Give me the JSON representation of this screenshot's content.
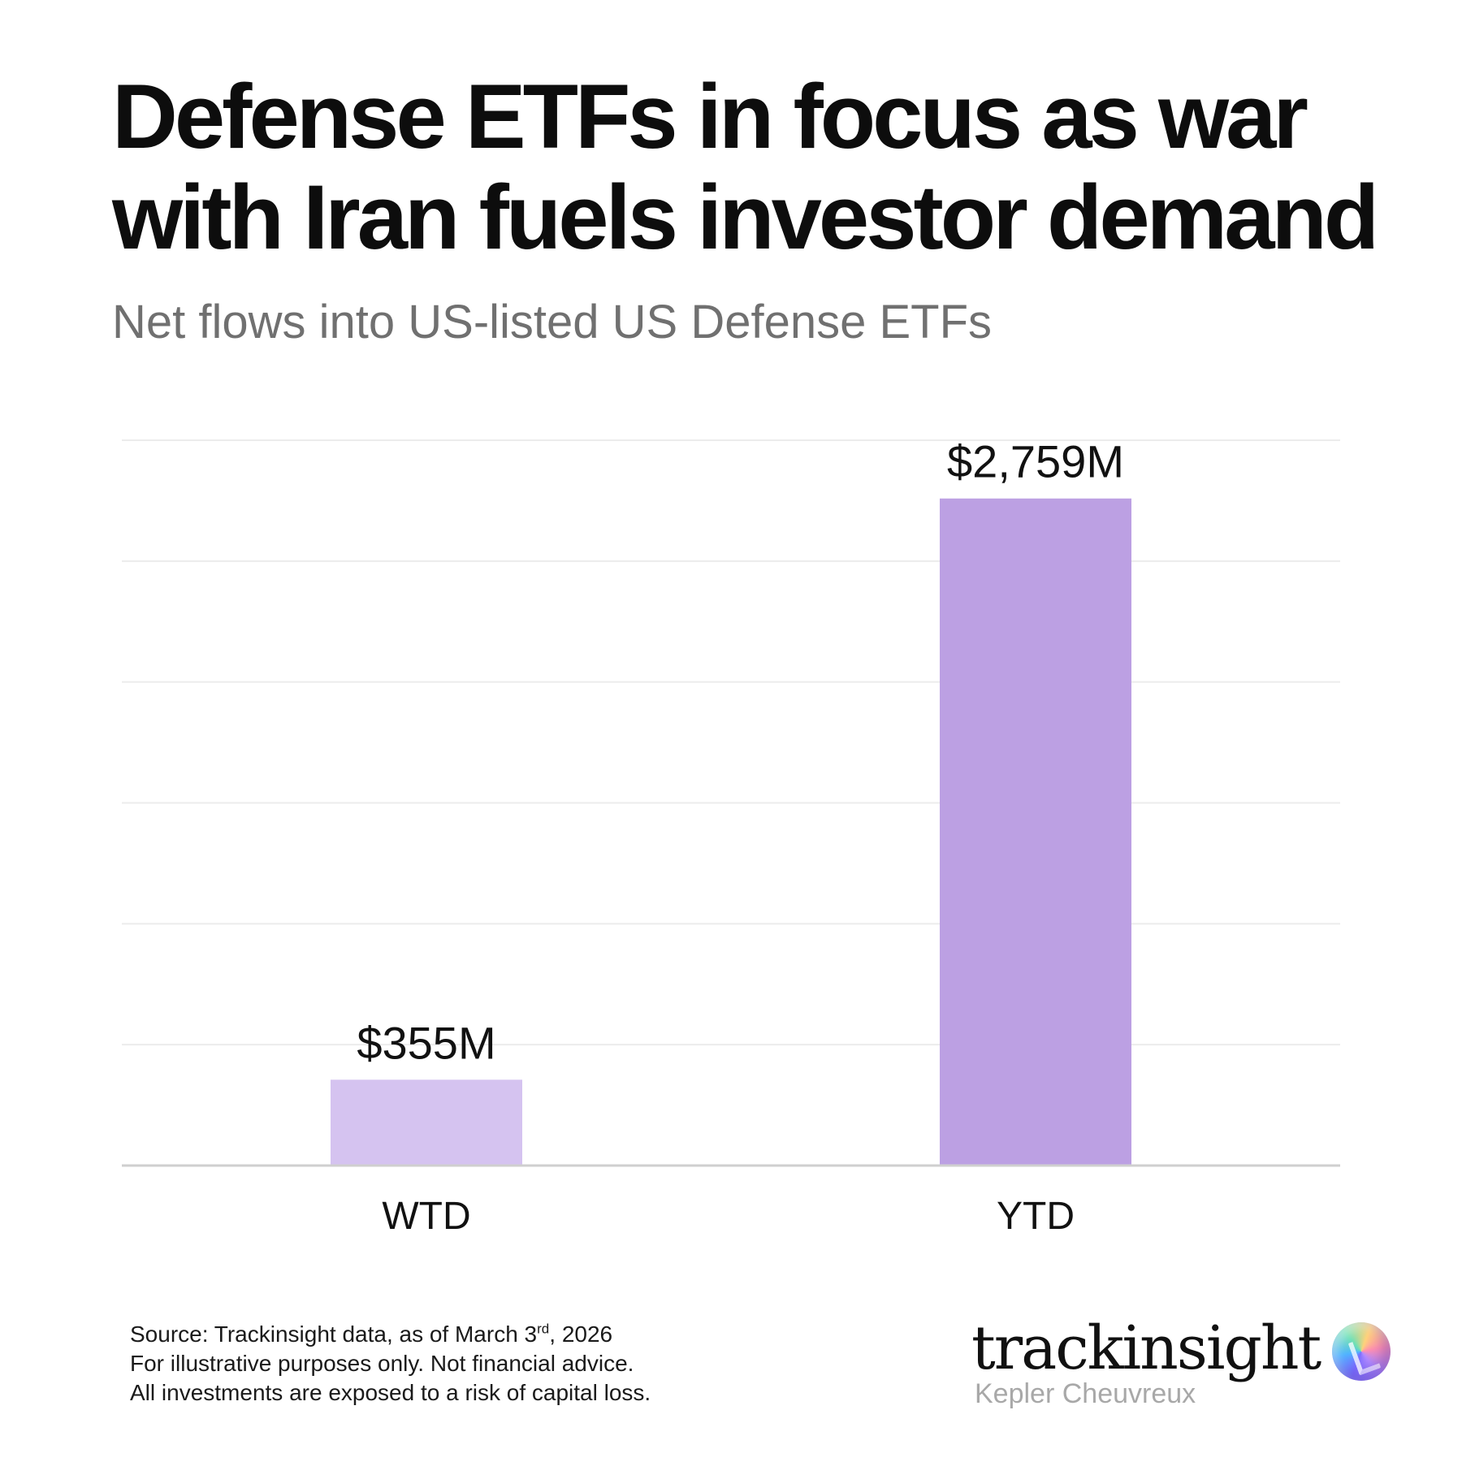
{
  "header": {
    "title_line1": "Defense ETFs in focus as war",
    "title_line2": "with Iran fuels investor demand",
    "subtitle": "Net flows into US-listed US Defense ETFs"
  },
  "chart_data": {
    "type": "bar",
    "categories": [
      "WTD",
      "YTD"
    ],
    "values": [
      355,
      2759
    ],
    "data_labels": [
      "$355M",
      "$2,759M"
    ],
    "title": "Defense ETFs in focus as war with Iran fuels investor demand",
    "subtitle": "Net flows into US-listed US Defense ETFs",
    "xlabel": "",
    "ylabel": "",
    "ylim": [
      0,
      3000
    ],
    "gridlines": [
      0,
      500,
      1000,
      1500,
      2000,
      2500,
      3000
    ],
    "grid": true,
    "legend": "none",
    "colors": [
      "#d5c3f0",
      "#bca0e3"
    ]
  },
  "footer": {
    "source_prefix": "Source: Trackinsight data, as of March 3",
    "source_sup": "rd",
    "source_suffix": ", 2026",
    "disclaimer1": "For illustrative purposes only. Not financial advice.",
    "disclaimer2": "All investments are exposed to a risk of capital loss."
  },
  "logo": {
    "wordmark": "trackinsight",
    "tagline": "Kepler Cheuvreux",
    "icon": "trackinsight-orb-icon"
  }
}
